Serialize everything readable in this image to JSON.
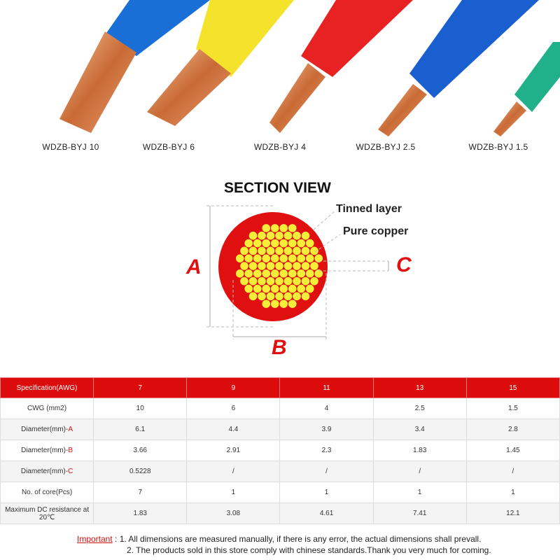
{
  "wires": [
    {
      "label": "WDZB-BYJ 10",
      "color": "#1a6fd6"
    },
    {
      "label": "WDZB-BYJ 6",
      "color": "#f4e32a"
    },
    {
      "label": "WDZB-BYJ 4",
      "color": "#e82222"
    },
    {
      "label": "WDZB-BYJ 2.5",
      "color": "#1a5fd0"
    },
    {
      "label": "WDZB-BYJ 1.5",
      "color": "#20b08a"
    }
  ],
  "section": {
    "title": "SECTION VIEW",
    "tinned": "Tinned layer",
    "copper": "Pure copper",
    "a": "A",
    "b": "B",
    "c": "C",
    "insulation_color": "#e01010",
    "strand_color": "#f6ef3a"
  },
  "table": {
    "header": [
      "Specification(AWG)",
      "7",
      "9",
      "11",
      "13",
      "15"
    ],
    "rows": [
      {
        "label": "CWG (mm2)",
        "suffix": "",
        "values": [
          "10",
          "6",
          "4",
          "2.5",
          "1.5"
        ]
      },
      {
        "label": "Diameter(mm)-",
        "suffix": "A",
        "values": [
          "6.1",
          "4.4",
          "3.9",
          "3.4",
          "2.8"
        ]
      },
      {
        "label": "Diameter(mm)-",
        "suffix": "B",
        "values": [
          "3.66",
          "2.91",
          "2.3",
          "1.83",
          "1.45"
        ]
      },
      {
        "label": "Diameter(mm)-",
        "suffix": "C",
        "values": [
          "0.5228",
          "/",
          "/",
          "/",
          "/"
        ]
      },
      {
        "label": "No. of core(Pcs)",
        "suffix": "",
        "values": [
          "7",
          "1",
          "1",
          "1",
          "1"
        ]
      },
      {
        "label": "Maximum DC resistance at 20℃",
        "suffix": "",
        "values": [
          "1.83",
          "3.08",
          "4.61",
          "7.41",
          "12.1"
        ]
      }
    ]
  },
  "notes": {
    "important": "Important",
    "line1": " : 1. All dimensions are measured manually, if there is any error, the actual dimensions shall prevall.",
    "line2": "2. The products sold in this store comply with chinese standards.Thank you very much for coming."
  }
}
